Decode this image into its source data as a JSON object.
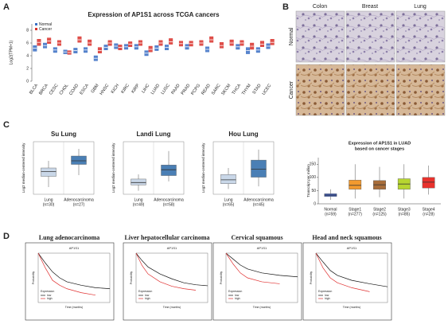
{
  "panel_labels": [
    "A",
    "B",
    "C",
    "D"
  ],
  "ihc": {
    "columns": [
      "Colon",
      "Breast",
      "Lung"
    ],
    "rows": [
      "Normal",
      "Cancer"
    ]
  },
  "chart_data": [
    {
      "type": "grouped_box",
      "title": "Expression of AP1S1 across TCGA cancers",
      "ylabel": "Log2(TPM+1)",
      "ylim": [
        0,
        9
      ],
      "yticks": [
        0,
        2,
        4,
        6,
        8
      ],
      "categories": [
        "BLCA",
        "BRCA",
        "CESC",
        "CHOL",
        "COAD",
        "ESCA",
        "GBM",
        "HNSC",
        "KICH",
        "KIRC",
        "KIRP",
        "LIHC",
        "LUAD",
        "LUSC",
        "PAAD",
        "PRAD",
        "PCPG",
        "READ",
        "SARC",
        "SKCM",
        "THCA",
        "THYM",
        "STAD",
        "UCEC"
      ],
      "category_colors": [
        "#d9312b",
        "#d9312b",
        "#d9312b",
        "#222222",
        "#d9312b",
        "#d9312b",
        "#3a6fc4",
        "#3a6fc4",
        "#222222",
        "#222222",
        "#d9312b",
        "#3a6fc4",
        "#d9312b",
        "#d9312b",
        "#222222",
        "#d9312b",
        "#222222",
        "#d9312b",
        "#222222",
        "#222222",
        "#d9312b",
        "#222222",
        "#d9312b",
        "#d9312b"
      ],
      "series": [
        {
          "name": "Normal",
          "color": "#3a6fc4",
          "q1": [
            4.7,
            5.2,
            4.5,
            4.3,
            4.4,
            4.5,
            3.2,
            4.9,
            5.1,
            5.0,
            5.0,
            4.0,
            4.8,
            4.9,
            null,
            5.0,
            null,
            4.6,
            null,
            null,
            5.0,
            4.3,
            4.5,
            5.1
          ],
          "median": [
            5.2,
            5.6,
            4.9,
            4.6,
            4.8,
            4.9,
            3.6,
            5.3,
            5.5,
            5.4,
            5.4,
            4.4,
            5.2,
            5.3,
            null,
            5.4,
            null,
            5.0,
            null,
            null,
            5.4,
            4.8,
            4.9,
            5.5
          ],
          "q3": [
            5.6,
            6.0,
            5.3,
            4.9,
            5.2,
            5.3,
            4.0,
            5.7,
            5.9,
            5.8,
            5.8,
            4.8,
            5.6,
            5.7,
            null,
            5.8,
            null,
            5.4,
            null,
            null,
            5.8,
            5.3,
            5.3,
            5.9
          ]
        },
        {
          "name": "Cancer",
          "color": "#d9312b",
          "q1": [
            5.6,
            5.9,
            5.6,
            4.2,
            6.1,
            5.6,
            4.4,
            5.6,
            4.9,
            5.4,
            5.6,
            4.6,
            5.6,
            5.8,
            5.5,
            5.5,
            5.6,
            6.1,
            5.2,
            5.6,
            5.6,
            5.0,
            5.4,
            5.7
          ],
          "median": [
            6.1,
            6.3,
            6.0,
            4.5,
            6.5,
            6.0,
            4.8,
            6.0,
            5.3,
            5.8,
            6.0,
            5.0,
            6.0,
            6.2,
            5.9,
            5.9,
            6.0,
            6.5,
            5.6,
            6.0,
            6.0,
            5.5,
            5.8,
            6.1
          ],
          "q3": [
            6.6,
            6.8,
            6.4,
            4.8,
            7.0,
            6.5,
            5.3,
            6.4,
            5.7,
            6.2,
            6.4,
            5.5,
            6.4,
            6.7,
            6.3,
            6.3,
            6.4,
            7.0,
            6.1,
            6.5,
            6.4,
            6.0,
            6.3,
            6.6
          ]
        }
      ]
    },
    {
      "type": "box",
      "title": "Su Lung",
      "ylabel": "Log2 median-centered intensity",
      "ylim": [
        -1.8,
        2.6
      ],
      "categories": [
        "Lung",
        "Adenocarcinoma"
      ],
      "category_notes": [
        "(n=30)",
        "(n=27)"
      ],
      "colors": [
        "#c9d7e8",
        "#4a7fb5"
      ],
      "boxes": [
        {
          "low": -1.2,
          "q1": -0.3,
          "median": 0.1,
          "q3": 0.4,
          "high": 1.0
        },
        {
          "low": -0.2,
          "q1": 0.7,
          "median": 1.0,
          "q3": 1.4,
          "high": 2.0
        }
      ]
    },
    {
      "type": "box",
      "title": "Landi Lung",
      "ylabel": "Log2 median-centered intensity",
      "ylim": [
        -2.5,
        2
      ],
      "categories": [
        "Lung",
        "Adenocarcinoma"
      ],
      "category_notes": [
        "(n=49)",
        "(n=58)"
      ],
      "colors": [
        "#c9d7e8",
        "#4a7fb5"
      ],
      "boxes": [
        {
          "low": -2.2,
          "q1": -1.7,
          "median": -1.5,
          "q3": -1.2,
          "high": -0.8
        },
        {
          "low": -1.4,
          "q1": -0.9,
          "median": -0.4,
          "q3": 0.0,
          "high": 1.2
        }
      ]
    },
    {
      "type": "box",
      "title": "Hou Lung",
      "ylabel": "Log2 median-centered intensity",
      "ylim": [
        -1.6,
        2.4
      ],
      "categories": [
        "Lung",
        "Adenocarcinoma"
      ],
      "category_notes": [
        "(n=65)",
        "(n=45)"
      ],
      "colors": [
        "#c9d7e8",
        "#4a7fb5"
      ],
      "boxes": [
        {
          "low": -1.2,
          "q1": -0.8,
          "median": -0.5,
          "q3": -0.1,
          "high": 0.4
        },
        {
          "low": -1.0,
          "q1": -0.3,
          "median": 0.3,
          "q3": 1.0,
          "high": 1.8
        }
      ]
    },
    {
      "type": "box",
      "title": "Expression of AP1S1 in LUAD",
      "subtitle": "based on cancer stages",
      "ylabel": "Transcript per million",
      "ylim": [
        0,
        175
      ],
      "yticks": [
        0,
        50,
        100,
        150
      ],
      "categories": [
        "Normal",
        "Stage1",
        "Stage2",
        "Stage3",
        "Stage4"
      ],
      "category_notes": [
        "(n=59)",
        "(n=277)",
        "(n=125)",
        "(n=85)",
        "(n=28)"
      ],
      "colors": [
        "#4060c0",
        "#f29a2e",
        "#a86d3a",
        "#b7d630",
        "#e8322d"
      ],
      "boxes": [
        {
          "low": 15,
          "q1": 28,
          "median": 33,
          "q3": 38,
          "high": 55
        },
        {
          "low": 20,
          "q1": 55,
          "median": 70,
          "q3": 90,
          "high": 150
        },
        {
          "low": 25,
          "q1": 55,
          "median": 72,
          "q3": 88,
          "high": 140
        },
        {
          "low": 20,
          "q1": 55,
          "median": 75,
          "q3": 95,
          "high": 150
        },
        {
          "low": 35,
          "q1": 60,
          "median": 82,
          "q3": 100,
          "high": 145
        }
      ]
    },
    {
      "type": "survival",
      "title": "Lung adenocarcinoma",
      "subtitle": "AP1S1",
      "xlabel": "Time (months)",
      "ylabel": "Probability",
      "legend_title": "Expression",
      "xlim": [
        0,
        250
      ],
      "ylim": [
        0,
        1
      ],
      "x": [
        0,
        25,
        50,
        75,
        100,
        150,
        200,
        250
      ],
      "series": [
        {
          "name": "low",
          "color": "#111111",
          "values": [
            1,
            0.8,
            0.62,
            0.5,
            0.42,
            0.35,
            0.3,
            0.28
          ]
        },
        {
          "name": "high",
          "color": "#e03030",
          "values": [
            1,
            0.7,
            0.45,
            0.35,
            0.28,
            0.2,
            0.15,
            null
          ]
        }
      ]
    },
    {
      "type": "survival",
      "title": "Liver hepatocellular carcinoma",
      "subtitle": "AP1S1",
      "xlabel": "Time (months)",
      "ylabel": "Probability",
      "legend_title": "Expression",
      "xlim": [
        0,
        120
      ],
      "ylim": [
        0,
        1
      ],
      "x": [
        0,
        10,
        20,
        40,
        60,
        80,
        100,
        120
      ],
      "series": [
        {
          "name": "low",
          "color": "#111111",
          "values": [
            1,
            0.85,
            0.72,
            0.58,
            0.48,
            0.4,
            0.36,
            0.34
          ]
        },
        {
          "name": "high",
          "color": "#e03030",
          "values": [
            1,
            0.75,
            0.58,
            0.42,
            0.33,
            0.28,
            0.25,
            null
          ]
        }
      ]
    },
    {
      "type": "survival",
      "title": "Cervical squamous",
      "subtitle": "AP1S1",
      "xlabel": "Time (months)",
      "ylabel": "Probability",
      "legend_title": "Expression",
      "xlim": [
        0,
        200
      ],
      "ylim": [
        0,
        1
      ],
      "x": [
        0,
        20,
        40,
        60,
        100,
        150,
        200
      ],
      "series": [
        {
          "name": "low",
          "color": "#111111",
          "values": [
            1,
            0.88,
            0.76,
            0.68,
            0.6,
            0.55,
            0.52
          ]
        },
        {
          "name": "high",
          "color": "#e03030",
          "values": [
            1,
            0.78,
            0.6,
            0.5,
            0.42,
            0.38,
            null
          ]
        }
      ]
    },
    {
      "type": "survival",
      "title": "Head and neck squamous",
      "subtitle": "AP1S1",
      "xlabel": "Time (months)",
      "ylabel": "Probability",
      "legend_title": "Expression",
      "xlim": [
        0,
        200
      ],
      "ylim": [
        0,
        1
      ],
      "x": [
        0,
        20,
        40,
        60,
        100,
        150,
        200
      ],
      "series": [
        {
          "name": "low",
          "color": "#111111",
          "values": [
            1,
            0.82,
            0.65,
            0.55,
            0.45,
            0.38,
            0.32
          ]
        },
        {
          "name": "high",
          "color": "#e03030",
          "values": [
            1,
            0.7,
            0.5,
            0.4,
            0.3,
            0.22,
            null
          ]
        }
      ]
    }
  ]
}
